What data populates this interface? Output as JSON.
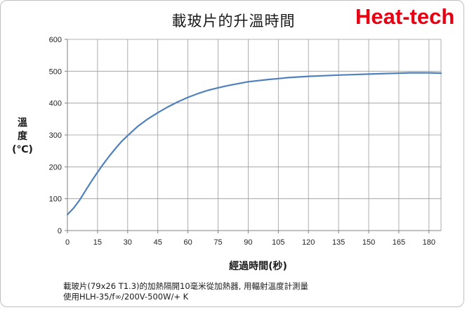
{
  "chart_data": {
    "type": "line",
    "title": "載玻片的升溫時間",
    "xlabel": "經過時間(秒)",
    "ylabel_lines": [
      "溫",
      "度",
      "(℃)"
    ],
    "xlim": [
      0,
      186
    ],
    "ylim": [
      0,
      600
    ],
    "x_ticks": [
      "0",
      "15",
      "30",
      "45",
      "60",
      "75",
      "90",
      "105",
      "120",
      "135",
      "150",
      "165",
      "180"
    ],
    "y_ticks": [
      "0",
      "100",
      "200",
      "300",
      "400",
      "500",
      "600"
    ],
    "grid": true,
    "series": [
      {
        "color": "#4f81bd",
        "x": [
          0,
          3,
          6,
          9,
          12,
          15,
          18,
          21,
          24,
          27,
          30,
          35,
          40,
          45,
          50,
          55,
          60,
          65,
          70,
          75,
          80,
          90,
          100,
          105,
          110,
          120,
          135,
          150,
          160,
          165,
          170,
          180,
          186
        ],
        "y": [
          50,
          70,
          95,
          125,
          155,
          183,
          210,
          235,
          258,
          280,
          298,
          327,
          350,
          370,
          388,
          404,
          418,
          430,
          440,
          448,
          455,
          467,
          474,
          477,
          480,
          484,
          488,
          491,
          493,
          494,
          495,
          495,
          494
        ]
      }
    ]
  },
  "brand": "Heat-tech",
  "caption": {
    "line1": "載玻片(79x26 T1.3)的加熱隔開10毫米從加熱器, 用輻射溫度計測量",
    "line2": "使用HLH-35/f∞/200V-500W/+ K"
  }
}
